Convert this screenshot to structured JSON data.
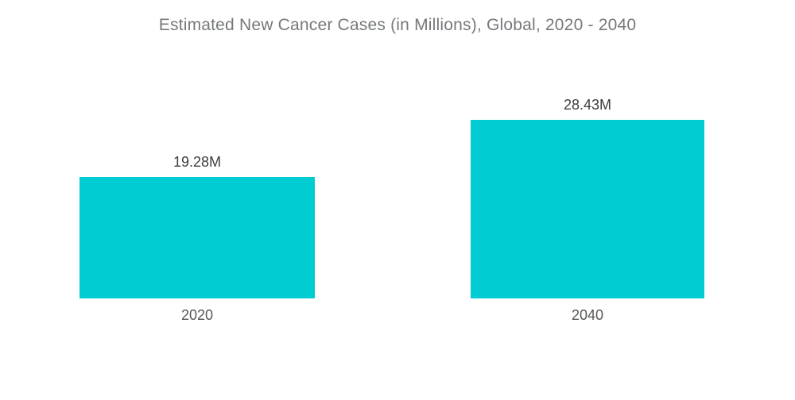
{
  "chart_data": {
    "type": "bar",
    "title": "Estimated New Cancer Cases (in Millions), Global, 2020 - 2040",
    "categories": [
      "2020",
      "2040"
    ],
    "values": [
      19.28,
      28.43
    ],
    "value_labels": [
      "19.28M",
      "28.43M"
    ],
    "series": [
      {
        "name": "Estimated New Cancer Cases",
        "values": [
          19.28,
          28.43
        ]
      }
    ],
    "ylim": [
      0,
      28.43
    ],
    "xlabel": "",
    "ylabel": "",
    "grid": false,
    "legend": "none",
    "bar_color": "#00CCD2",
    "title_color": "#75787B",
    "value_label_color": "#3B3E40",
    "category_label_color": "#55585B",
    "background_color": "#FFFFFF"
  }
}
